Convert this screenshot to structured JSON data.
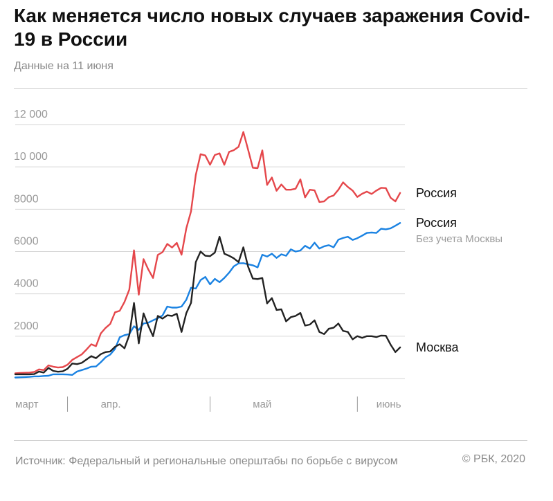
{
  "header": {
    "title": "Как меняется число новых случаев заражения Covid-19 в России",
    "subtitle": "Данные на 11 июня"
  },
  "footer": {
    "source": "Источник: Федеральный и региональные оперштабы по борьбе с вирусом",
    "copyright": "© РБК, 2020"
  },
  "colors": {
    "russia": "#e5474b",
    "russia_excl_moscow": "#1a82e2",
    "moscow": "#222222",
    "grid": "#d6d6d6",
    "tick_text": "#9a9a9a"
  },
  "chart_data": {
    "type": "line",
    "title": "Как меняется число новых случаев заражения Covid-19 в России",
    "subtitle": "Данные на 11 июня",
    "x_axis": {
      "unit": "day",
      "start": "2020-03-21",
      "end": "2020-06-11",
      "month_labels": [
        {
          "label": "март",
          "date": "2020-03-21"
        },
        {
          "label": "апр.",
          "date": "2020-04-08"
        },
        {
          "label": "май",
          "date": "2020-05-10"
        },
        {
          "label": "июнь",
          "date": "2020-06-05"
        }
      ],
      "month_boundaries": [
        "2020-04-01",
        "2020-05-01",
        "2020-06-01"
      ]
    },
    "y_axis": {
      "ylim": [
        0,
        12000
      ],
      "ticks": [
        0,
        2000,
        4000,
        6000,
        8000,
        10000,
        12000
      ],
      "tick_labels": [
        "",
        "2000",
        "4000",
        "6000",
        "8000",
        "10 000",
        "12 000"
      ]
    },
    "grid": true,
    "legend": "inline labels at line ends",
    "series": [
      {
        "name": "Россия",
        "color": "#e5474b",
        "start_date": "2020-03-21",
        "values": [
          250,
          260,
          270,
          280,
          310,
          430,
          400,
          620,
          560,
          520,
          540,
          650,
          880,
          1010,
          1140,
          1370,
          1620,
          1530,
          2130,
          2390,
          2580,
          3130,
          3200,
          3620,
          4200,
          6060,
          3960,
          5640,
          5160,
          4750,
          5840,
          5970,
          6360,
          6190,
          6410,
          5850,
          7100,
          7900,
          9620,
          10600,
          10540,
          10100,
          10560,
          10640,
          10100,
          10710,
          10790,
          10950,
          11650,
          10820,
          9960,
          9940,
          10780,
          9150,
          9500,
          8870,
          9170,
          8920,
          8920,
          8970,
          9410,
          8560,
          8920,
          8890,
          8340,
          8370,
          8570,
          8650,
          8920,
          9270,
          9050,
          8880,
          8580,
          8730,
          8830,
          8720,
          8880,
          9010,
          9000,
          8540,
          8370,
          8770
        ]
      },
      {
        "name": "Россия",
        "note": "Без учета Москвы",
        "color": "#1a82e2",
        "start_date": "2020-03-21",
        "values": [
          50,
          60,
          70,
          80,
          100,
          100,
          120,
          130,
          200,
          200,
          200,
          190,
          170,
          330,
          400,
          470,
          560,
          570,
          770,
          1000,
          1130,
          1400,
          1950,
          2050,
          2100,
          2470,
          2300,
          2600,
          2640,
          2750,
          2850,
          2980,
          3400,
          3350,
          3350,
          3400,
          3720,
          4290,
          4250,
          4650,
          4800,
          4450,
          4710,
          4550,
          4750,
          5000,
          5300,
          5440,
          5450,
          5400,
          5350,
          5250,
          5850,
          5760,
          5900,
          5700,
          5870,
          5800,
          6100,
          6000,
          6050,
          6270,
          6140,
          6420,
          6140,
          6250,
          6300,
          6200,
          6560,
          6640,
          6700,
          6550,
          6630,
          6750,
          6880,
          6900,
          6880,
          7080,
          7050,
          7100,
          7220,
          7350
        ]
      },
      {
        "name": "Москва",
        "color": "#222222",
        "start_date": "2020-03-21",
        "values": [
          200,
          200,
          200,
          200,
          210,
          330,
          280,
          500,
          360,
          320,
          340,
          460,
          710,
          680,
          740,
          900,
          1060,
          960,
          1150,
          1250,
          1280,
          1500,
          1620,
          1430,
          2050,
          3570,
          1660,
          3080,
          2500,
          2000,
          2960,
          2830,
          2990,
          2960,
          3060,
          2200,
          3090,
          3570,
          5500,
          6000,
          5800,
          5780,
          5950,
          6700,
          5900,
          5800,
          5680,
          5500,
          6200,
          5290,
          4720,
          4700,
          4750,
          3550,
          3800,
          3240,
          3270,
          2700,
          2900,
          2960,
          3100,
          2500,
          2550,
          2750,
          2200,
          2100,
          2350,
          2400,
          2600,
          2250,
          2200,
          1850,
          2000,
          1920,
          2000,
          2000,
          1960,
          2030,
          2020,
          1600,
          1250,
          1470
        ]
      }
    ],
    "end_labels": [
      {
        "series": 0,
        "text": "Россия"
      },
      {
        "series": 1,
        "text": "Россия",
        "sub": "Без учета Москвы"
      },
      {
        "series": 2,
        "text": "Москва"
      }
    ]
  }
}
